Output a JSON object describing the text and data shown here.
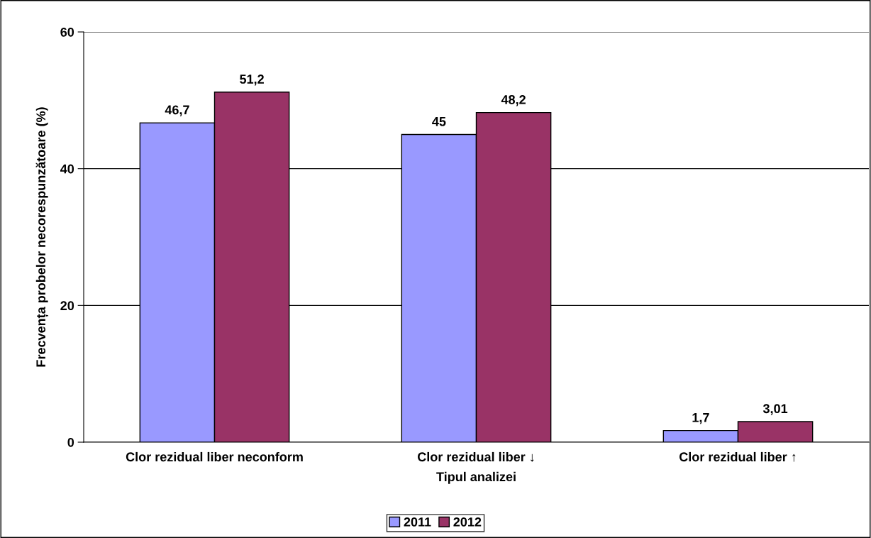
{
  "chart_data": {
    "type": "bar",
    "xlabel": "Tipul analizei",
    "ylabel": "Frecvența probelor necorespunzătoare (%)",
    "categories": [
      "Clor rezidual liber neconform",
      "Clor rezidual liber ↓",
      "Clor rezidual liber ↑"
    ],
    "series": [
      {
        "name": "2011",
        "color": "#9999ff",
        "values": [
          46.7,
          45,
          1.7
        ],
        "value_labels": [
          "46,7",
          "45",
          "1,7"
        ]
      },
      {
        "name": "2012",
        "color": "#993366",
        "values": [
          51.2,
          48.2,
          3.01
        ],
        "value_labels": [
          "51,2",
          "48,2",
          "3,01"
        ]
      }
    ],
    "ylim": [
      0,
      60
    ],
    "yticks": [
      0,
      20,
      40,
      60
    ],
    "grid": "y",
    "legend": "bottom"
  }
}
